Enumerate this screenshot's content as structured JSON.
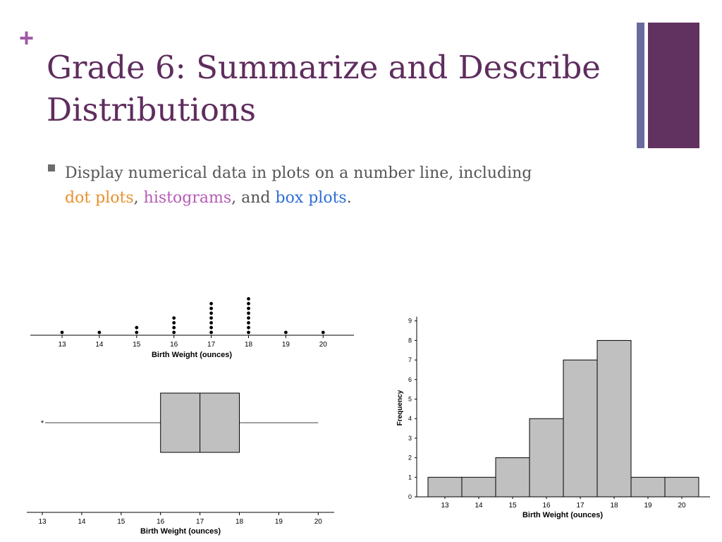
{
  "slide": {
    "plus_glyph": "+",
    "title": "Grade 6: Summarize and Describe Distributions",
    "bullet_text_1": "Display numerical data in plots on a number line, including",
    "term_dot": "dot plots",
    "sep1": ",",
    "term_hist": "histograms",
    "sep2": ", and",
    "term_box": "box plots",
    "end": "."
  },
  "colors": {
    "title": "#5f2d5e",
    "plus": "#a05aa5",
    "accent_thin": "#6a6b9c",
    "accent_thick": "#613160",
    "bullet": "#6b6b6b",
    "text": "#555555",
    "dot_plots": "#e8902e",
    "histograms": "#b55bb5",
    "box_plots": "#2f6ed6",
    "fill": "#c0c0c0"
  },
  "chart_data": [
    {
      "type": "scatter",
      "kind": "dot plot",
      "xlabel": "Birth Weight (ounces)",
      "ticks": [
        13,
        14,
        15,
        16,
        17,
        18,
        19,
        20
      ],
      "counts": [
        1,
        1,
        2,
        4,
        7,
        8,
        1,
        1
      ]
    },
    {
      "type": "box",
      "kind": "box plot",
      "xlabel": "Birth Weight (ounces)",
      "ticks": [
        13,
        14,
        15,
        16,
        17,
        18,
        19,
        20
      ],
      "outlier": 13,
      "whisker_high": 20,
      "q1": 16,
      "median": 17,
      "q3": 18
    },
    {
      "type": "bar",
      "kind": "histogram",
      "xlabel": "Birth Weight (ounces)",
      "ylabel": "Frequency",
      "categories": [
        "13",
        "14",
        "15",
        "16",
        "17",
        "18",
        "19",
        "20"
      ],
      "values": [
        1,
        1,
        2,
        4,
        7,
        8,
        1,
        1
      ],
      "ylim": [
        0,
        9
      ],
      "yticks": [
        0,
        1,
        2,
        3,
        4,
        5,
        6,
        7,
        8,
        9
      ]
    }
  ]
}
